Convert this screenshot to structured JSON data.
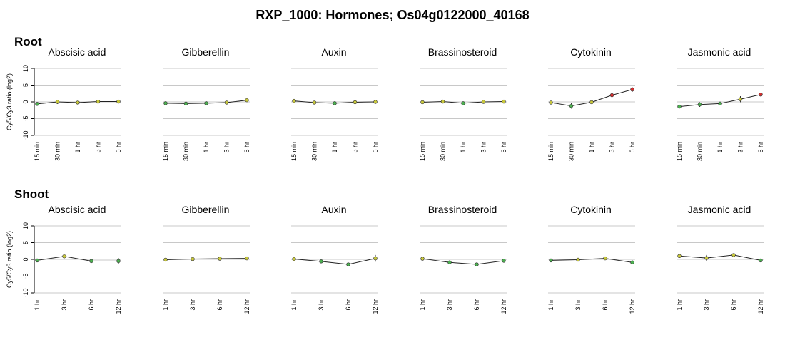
{
  "figure_title": "RXP_1000: Hormones; Os04g0122000_40168",
  "colors": {
    "down": "#4caf50",
    "neutral": "#c8c83c",
    "up": "#d43030"
  },
  "chart_data": [
    {
      "type": "line",
      "section": "Root",
      "ylabel": "Cy5/Cy3 ratio (log2)",
      "ylim": [
        -10,
        10
      ],
      "yticks": [
        10,
        5,
        0,
        -5,
        -10
      ],
      "x": [
        "15 min",
        "30 min",
        "1 hr",
        "3 hr",
        "6 hr"
      ],
      "panels": [
        {
          "name": "Abscisic acid",
          "values": [
            -0.6,
            0.0,
            -0.2,
            0.1,
            0.1
          ],
          "err": [
            0.3,
            0.6,
            0.3,
            0.2,
            0.2
          ]
        },
        {
          "name": "Gibberellin",
          "values": [
            -0.4,
            -0.5,
            -0.4,
            -0.2,
            0.5
          ],
          "err": [
            0.3,
            0.3,
            0.3,
            0.2,
            0.4
          ]
        },
        {
          "name": "Auxin",
          "values": [
            0.3,
            -0.2,
            -0.4,
            -0.1,
            0.0
          ],
          "err": [
            0.2,
            0.3,
            0.3,
            0.2,
            0.2
          ]
        },
        {
          "name": "Brassinosteroid",
          "values": [
            -0.1,
            0.1,
            -0.4,
            0.0,
            0.1
          ],
          "err": [
            0.2,
            0.2,
            0.3,
            0.2,
            0.2
          ]
        },
        {
          "name": "Cytokinin",
          "values": [
            -0.2,
            -1.2,
            -0.1,
            2.0,
            3.7
          ],
          "err": [
            0.3,
            0.8,
            0.3,
            0.4,
            0.7
          ]
        },
        {
          "name": "Jasmonic acid",
          "values": [
            -1.4,
            -0.8,
            -0.5,
            0.8,
            2.2
          ],
          "err": [
            0.3,
            0.7,
            0.4,
            0.9,
            0.3
          ]
        }
      ]
    },
    {
      "type": "line",
      "section": "Shoot",
      "ylabel": "Cy5/Cy3 ratio (log2)",
      "ylim": [
        -10,
        10
      ],
      "yticks": [
        10,
        5,
        0,
        -5,
        -10
      ],
      "x": [
        "1 hr",
        "3 hr",
        "6 hr",
        "12 hr"
      ],
      "panels": [
        {
          "name": "Abscisic acid",
          "values": [
            -0.3,
            0.9,
            -0.5,
            -0.5
          ],
          "err": [
            0.3,
            0.3,
            0.6,
            0.9
          ]
        },
        {
          "name": "Gibberellin",
          "values": [
            -0.1,
            0.1,
            0.2,
            0.3
          ],
          "err": [
            0.2,
            0.2,
            0.2,
            0.2
          ]
        },
        {
          "name": "Auxin",
          "values": [
            0.1,
            -0.6,
            -1.5,
            0.3
          ],
          "err": [
            0.2,
            0.3,
            0.3,
            1.0
          ]
        },
        {
          "name": "Brassinosteroid",
          "values": [
            0.2,
            -0.9,
            -1.5,
            -0.4
          ],
          "err": [
            0.2,
            0.3,
            0.2,
            0.3
          ]
        },
        {
          "name": "Cytokinin",
          "values": [
            -0.3,
            -0.1,
            0.3,
            -0.9
          ],
          "err": [
            0.2,
            0.2,
            0.3,
            0.3
          ]
        },
        {
          "name": "Jasmonic acid",
          "values": [
            1.0,
            0.4,
            1.3,
            -0.3
          ],
          "err": [
            0.5,
            0.9,
            0.2,
            0.2
          ]
        }
      ]
    }
  ]
}
